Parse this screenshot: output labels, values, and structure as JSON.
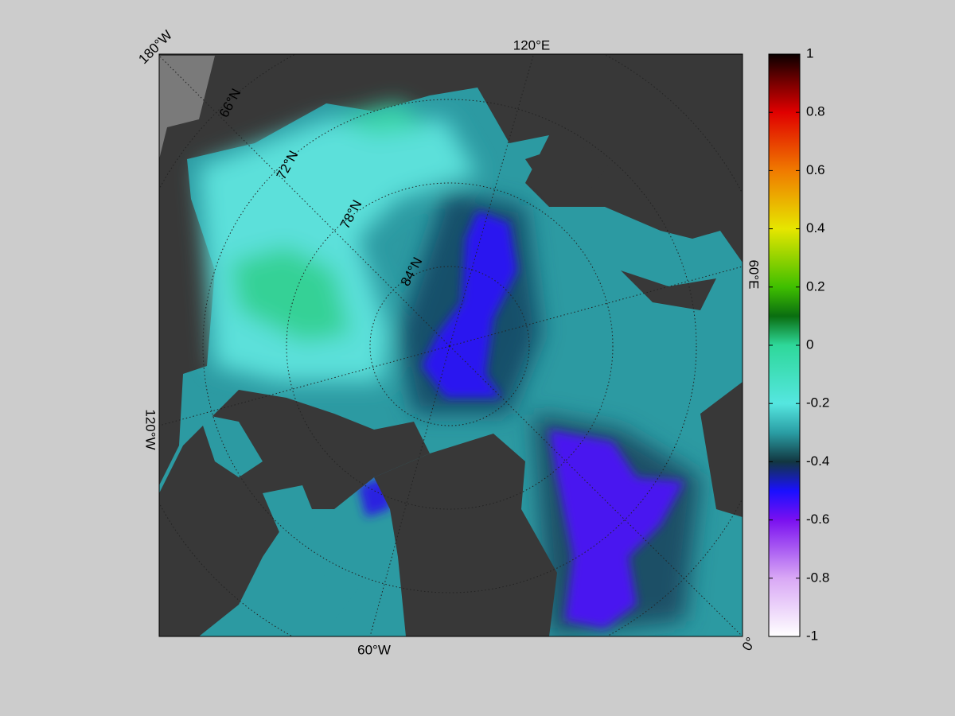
{
  "map": {
    "longitude_labels": [
      "180°W",
      "120°E",
      "60°E",
      "0°",
      "60°W",
      "120°W"
    ],
    "latitude_labels": [
      "66°N",
      "72°N",
      "78°N",
      "84°N"
    ]
  },
  "colorbar": {
    "clim": [
      -1,
      1
    ],
    "ticks": [
      -1,
      -0.8,
      -0.6,
      -0.4,
      -0.2,
      0,
      0.2,
      0.4,
      0.6,
      0.8,
      1
    ]
  }
}
